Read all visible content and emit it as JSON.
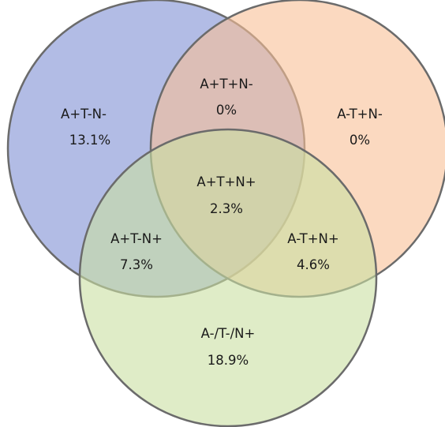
{
  "regions": {
    "a_only": {
      "label": "A+T-N-",
      "value": "13.1%"
    },
    "t_only": {
      "label": "A-T+N-",
      "value": "0%"
    },
    "at": {
      "label": "A+T+N-",
      "value": "0%"
    },
    "center": {
      "label": "A+T+N+",
      "value": "2.3%"
    },
    "an": {
      "label": "A+T-N+",
      "value": "7.3%"
    },
    "tn": {
      "label": "A-T+N+",
      "value": "4.6%"
    },
    "n_only": {
      "label": "A-/T-/N+",
      "value": "18.9%"
    }
  },
  "colors": {
    "circle_a": "#7f8fd4",
    "circle_t": "#f8bf96",
    "circle_n": "#cadfa2",
    "stroke": "#6b6b6b",
    "text": "#1a1a1a"
  }
}
